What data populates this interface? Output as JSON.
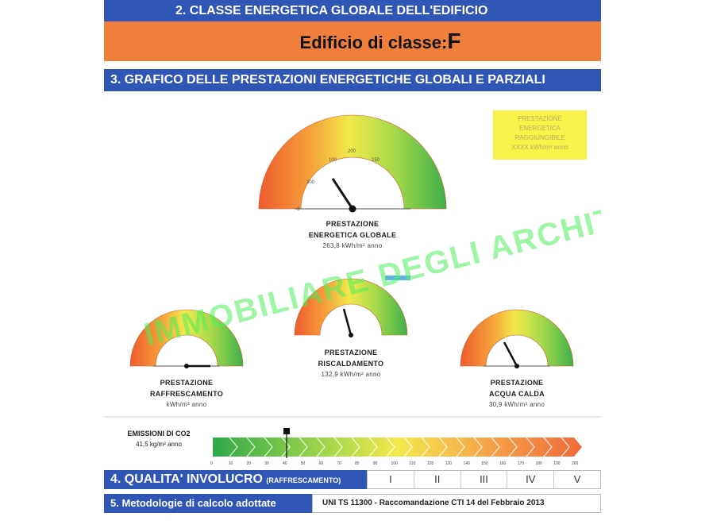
{
  "section2": {
    "title": "2. CLASSE ENERGETICA GLOBALE DELL'EDIFICIO",
    "label": "Edificio di classe:",
    "class": "F"
  },
  "section3": {
    "title": "3. GRAFICO DELLE PRESTAZIONI ENERGETICHE GLOBALI E PARZIALI"
  },
  "legend": {
    "lines": [
      "PRESTAZIONE",
      "ENERGETICA",
      "RAGGIUNGIBILE",
      "XXXX kWh/m² anno"
    ]
  },
  "watermark": {
    "text": "IMMOBILIARE DEGLI ARCHITETTI OSA",
    "color": "#4cf05a"
  },
  "gauges": {
    "global": {
      "line1": "PRESTAZIONE",
      "line2": "ENERGETICA GLOBALE",
      "value": "263,8 kWh/m² anno",
      "ticks": [
        "100",
        "200",
        "150",
        "300",
        "0"
      ]
    },
    "cooling": {
      "line1": "PRESTAZIONE",
      "line2": "RAFFRESCAMENTO",
      "value": "kWh/m² anno"
    },
    "heating": {
      "line1": "PRESTAZIONE",
      "line2": "RISCALDAMENTO",
      "value": "132,9 kWh/m² anno"
    },
    "water": {
      "line1": "PRESTAZIONE",
      "line2": "ACQUA CALDA",
      "value": "30,9 kWh/m² anno"
    }
  },
  "co2": {
    "line1": "EMISSIONI DI CO2",
    "value": "41,5 kg/m² anno",
    "ticks": [
      "0",
      "10",
      "20",
      "30",
      "40",
      "50",
      "60",
      "70",
      "80",
      "90",
      "100",
      "110",
      "120",
      "130",
      "140",
      "150",
      "160",
      "170",
      "180",
      "190",
      "200"
    ],
    "marker_index": 4
  },
  "section4": {
    "title": "4. QUALITA' INVOLUCRO",
    "subtitle": "(RAFFRESCAMENTO)",
    "classes": [
      "I",
      "II",
      "III",
      "IV",
      "V"
    ]
  },
  "section5": {
    "title": "5. Metodologie di calcolo adottate",
    "text": "UNI TS 11300 - Raccomandazione CTI 14 del Febbraio 2013"
  }
}
